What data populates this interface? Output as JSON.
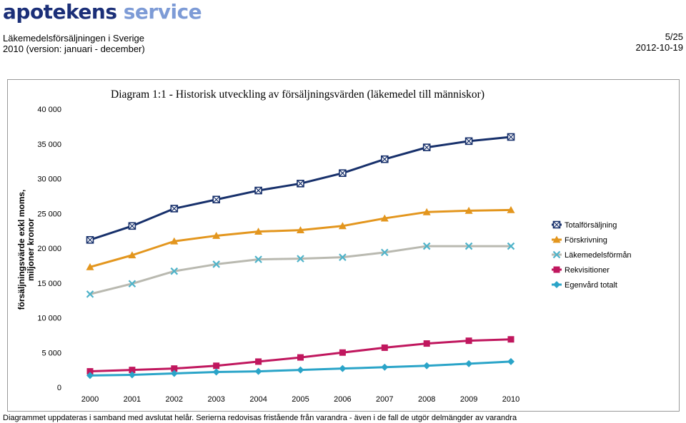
{
  "header": {
    "logo_part1": "apotekens",
    "logo_part2": "service",
    "title_line1": "Läkemedelsförsäljningen i Sverige",
    "title_line2": "2010 (version: januari - december)",
    "page": "5/25",
    "date": "2012-10-19"
  },
  "footnote": "Diagrammet uppdateras i samband med avslutat helår. Serierna redovisas fristående från varandra - även i de fall de utgör delmängder av varandra",
  "chart_data": {
    "type": "line",
    "title": "Diagram 1:1 - Historisk utveckling av försäljningsvärden (läkemedel till människor)",
    "ylabel_line1": "försäljningsvärde exkl moms,",
    "ylabel_line2": "miljoner kronor",
    "xlabel": "",
    "ylim": [
      0,
      40000
    ],
    "ytick_values": [
      0,
      5000,
      10000,
      15000,
      20000,
      25000,
      30000,
      35000,
      40000
    ],
    "ytick_labels": [
      "0",
      "5 000",
      "10 000",
      "15 000",
      "20 000",
      "25 000",
      "30 000",
      "35 000",
      "40 000"
    ],
    "categories": [
      "2000",
      "2001",
      "2002",
      "2003",
      "2004",
      "2005",
      "2006",
      "2007",
      "2008",
      "2009",
      "2010"
    ],
    "grid": false,
    "legend_position": "right",
    "series": [
      {
        "name": "Totalförsäljning",
        "color": "#17306b",
        "marker": "square-x",
        "values": [
          21200,
          23200,
          25700,
          27000,
          28300,
          29300,
          30800,
          32800,
          34500,
          35400,
          36000
        ]
      },
      {
        "name": "Förskrivning",
        "color": "#e3961e",
        "marker": "triangle",
        "values": [
          17300,
          19000,
          21000,
          21800,
          22400,
          22600,
          23200,
          24300,
          25200,
          25400,
          25500
        ]
      },
      {
        "name": "Läkemedelsförmån",
        "color": "#b9b9b0",
        "marker": "x",
        "values": [
          13400,
          14900,
          16700,
          17700,
          18400,
          18500,
          18700,
          19400,
          20300,
          20300,
          20300
        ]
      },
      {
        "name": "Rekvisitioner",
        "color": "#c0175e",
        "marker": "square",
        "values": [
          2300,
          2500,
          2700,
          3100,
          3700,
          4300,
          5000,
          5700,
          6300,
          6700,
          6900
        ]
      },
      {
        "name": "Egenvård totalt",
        "color": "#2aa4c8",
        "marker": "diamond",
        "values": [
          1700,
          1800,
          2000,
          2200,
          2300,
          2500,
          2700,
          2900,
          3100,
          3400,
          3700
        ]
      }
    ]
  }
}
